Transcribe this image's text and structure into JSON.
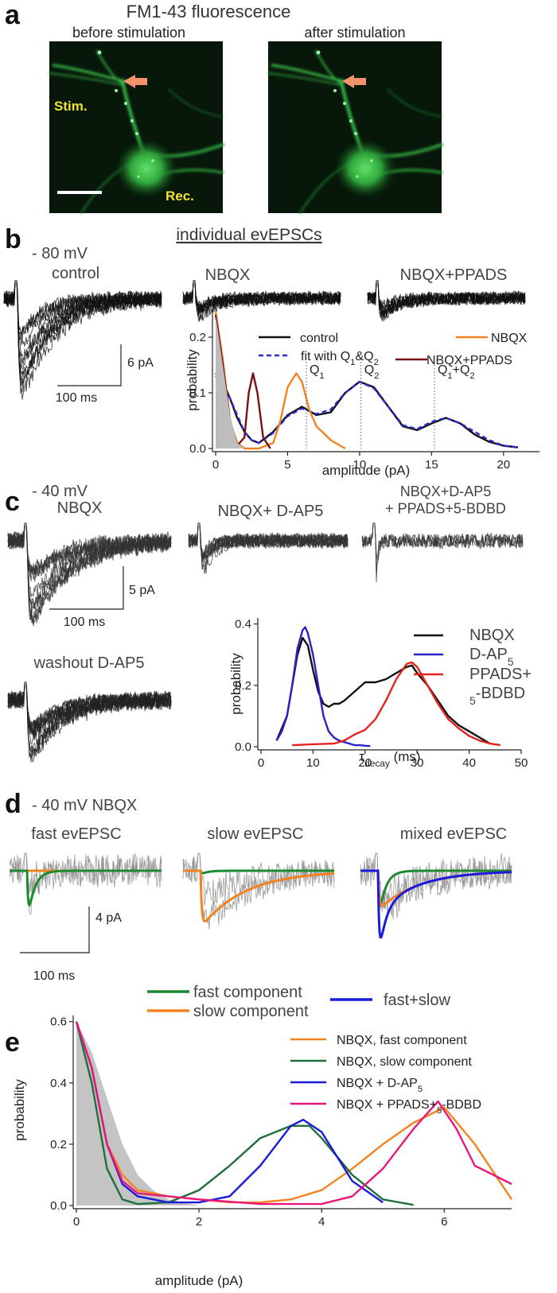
{
  "panel_a": {
    "label": "a",
    "title": "FM1-43  fluorescence",
    "left_caption": "before stimulation",
    "right_caption": "after  stimulation",
    "stim_label": "Stim.",
    "rec_label": "Rec."
  },
  "panel_b": {
    "label": "b",
    "voltage": "- 80 mV",
    "heading": "individual evEPSCs",
    "traces": [
      "control",
      "NBQX",
      "NBQX+PPADS"
    ],
    "scale_y": "6 pA",
    "scale_x": "100 ms"
  },
  "panel_c": {
    "label": "c",
    "voltage": "- 40 mV",
    "traces": [
      "NBQX",
      "NBQX+ D-AP5",
      "NBQX+D-AP5\n+ PPADS+5-BDBD",
      "washout D-AP5"
    ],
    "scale_y": "5 pA",
    "scale_x": "100 ms"
  },
  "panel_d": {
    "label": "d",
    "voltage": "- 40 mV NBQX",
    "traces": [
      "fast evEPSC",
      "slow evEPSC",
      "mixed evEPSC"
    ],
    "scale_y": "4 pA",
    "scale_x": "100 ms",
    "legend": [
      {
        "name": "fast component",
        "color": "#1c8a2e"
      },
      {
        "name": "slow component",
        "color": "#f58220"
      },
      {
        "name": "fast+slow",
        "color": "#1a1adb"
      }
    ]
  },
  "panel_e": {
    "label": "e"
  },
  "chart_data": [
    {
      "type": "line",
      "xlabel": "amplitude (pA)",
      "ylabel": "probability",
      "xlim": [
        0,
        22.5
      ],
      "ylim": [
        0,
        0.25
      ],
      "xticks": [
        0,
        5,
        10,
        15,
        20
      ],
      "yticks": [
        {
          "value": 0,
          "label": "0.0"
        },
        {
          "value": 0.1,
          "label": "0.1"
        },
        {
          "value": 0.2,
          "label": "0.2"
        }
      ],
      "series": [
        {
          "name": "control",
          "color": "#111111",
          "x": [
            0,
            0.5,
            1,
            1.5,
            2,
            2.5,
            3,
            4,
            5,
            6,
            7,
            8,
            9,
            10,
            11,
            12,
            13,
            14,
            15,
            16,
            17,
            18,
            19,
            20,
            21
          ],
          "values": [
            0.135,
            0.12,
            0.09,
            0.055,
            0.03,
            0.015,
            0.01,
            0.03,
            0.06,
            0.075,
            0.06,
            0.065,
            0.1,
            0.12,
            0.11,
            0.075,
            0.04,
            0.033,
            0.045,
            0.055,
            0.045,
            0.025,
            0.012,
            0.005,
            0.002
          ]
        },
        {
          "name": "fit with Q1&Q2",
          "color": "#2a2ad8",
          "dashed": true,
          "x": [
            0,
            0.5,
            1,
            1.5,
            2,
            2.5,
            3,
            4,
            5,
            6,
            7,
            8,
            9,
            10,
            11,
            12,
            13,
            14,
            15,
            16,
            17,
            18,
            19,
            20,
            21
          ],
          "values": [
            0.13,
            0.115,
            0.09,
            0.06,
            0.03,
            0.015,
            0.01,
            0.028,
            0.058,
            0.072,
            0.062,
            0.07,
            0.1,
            0.12,
            0.108,
            0.075,
            0.042,
            0.035,
            0.048,
            0.055,
            0.045,
            0.03,
            0.015,
            0.005,
            0.002
          ]
        },
        {
          "name": "NBQX",
          "color": "#f58220",
          "x": [
            0,
            0.5,
            1,
            1.5,
            2,
            3,
            4,
            4.5,
            5,
            5.6,
            6,
            6.5,
            7,
            8,
            9
          ],
          "values": [
            0.245,
            0.16,
            0.05,
            0.01,
            0,
            0,
            0.01,
            0.05,
            0.11,
            0.135,
            0.12,
            0.07,
            0.04,
            0.015,
            0
          ]
        },
        {
          "name": "NBQX+PPADS",
          "color": "#7a1014",
          "x": [
            0,
            0.5,
            1,
            1.5,
            2,
            2.3,
            2.6,
            2.9,
            3.3,
            3.8
          ],
          "values": [
            0.24,
            0.15,
            0.05,
            0.005,
            0.02,
            0.1,
            0.135,
            0.1,
            0.02,
            0
          ]
        },
        {
          "color": "#bdbdbd",
          "fill": true,
          "x": [
            0,
            0.5,
            1,
            1.5,
            2
          ],
          "values": [
            0.24,
            0.15,
            0.06,
            0.01,
            0
          ]
        }
      ],
      "annotations": [
        {
          "text": "Q1",
          "x": 6.3
        },
        {
          "text": "Q2",
          "x": 10.1
        },
        {
          "text": "Q1+Q2",
          "x": 15.2
        }
      ]
    },
    {
      "type": "line",
      "xlabel": "τdecay (ms)",
      "ylabel": "probability",
      "xlim": [
        0,
        50
      ],
      "ylim": [
        0,
        0.42
      ],
      "xticks": [
        0,
        10,
        20,
        30,
        40,
        50
      ],
      "yticks": [
        {
          "value": 0,
          "label": "0.0"
        },
        {
          "value": 0.2,
          "label": "0.2"
        },
        {
          "value": 0.4,
          "label": "0.4"
        }
      ],
      "series": [
        {
          "name": "NBQX",
          "color": "#111111",
          "x": [
            3,
            5,
            7,
            8,
            9,
            10,
            11,
            12,
            13,
            14,
            15,
            16,
            18,
            20,
            22,
            24,
            26,
            28,
            29,
            30,
            31,
            32,
            34,
            36,
            38,
            40,
            42,
            44
          ],
          "values": [
            0.02,
            0.1,
            0.3,
            0.355,
            0.33,
            0.25,
            0.18,
            0.14,
            0.13,
            0.14,
            0.14,
            0.15,
            0.18,
            0.21,
            0.21,
            0.22,
            0.24,
            0.26,
            0.265,
            0.24,
            0.22,
            0.2,
            0.15,
            0.1,
            0.07,
            0.05,
            0.03,
            0.01
          ]
        },
        {
          "name": "D-AP5",
          "color": "#2a22c8",
          "x": [
            3,
            4,
            5,
            6,
            7,
            8,
            8.5,
            9,
            10,
            11,
            12,
            13,
            14,
            15,
            16,
            17,
            18,
            19,
            20,
            21
          ],
          "values": [
            0.02,
            0.05,
            0.1,
            0.2,
            0.32,
            0.38,
            0.39,
            0.37,
            0.3,
            0.2,
            0.1,
            0.05,
            0.03,
            0.02,
            0.015,
            0.01,
            0.005,
            0.005,
            0.003,
            0.002
          ]
        },
        {
          "name": "PPADS+\n5-BDBD",
          "color": "#e8211f",
          "x": [
            6,
            10,
            14,
            16,
            18,
            20,
            22,
            24,
            26,
            28,
            29,
            30,
            32,
            34,
            36,
            38,
            40,
            42,
            44,
            46
          ],
          "values": [
            0.005,
            0.008,
            0.01,
            0.02,
            0.04,
            0.055,
            0.09,
            0.15,
            0.22,
            0.27,
            0.275,
            0.26,
            0.2,
            0.14,
            0.09,
            0.06,
            0.035,
            0.02,
            0.01,
            0.005
          ]
        }
      ]
    },
    {
      "type": "line",
      "xlabel": "amplitude (pA)",
      "ylabel": "probability",
      "xlim": [
        0,
        7.1
      ],
      "ylim": [
        0,
        0.62
      ],
      "xticks": [
        0,
        2,
        4,
        6
      ],
      "yticks": [
        {
          "value": 0,
          "label": "0.0"
        },
        {
          "value": 0.2,
          "label": "0.2"
        },
        {
          "value": 0.4,
          "label": "0.4"
        },
        {
          "value": 0.6,
          "label": "0.6"
        }
      ],
      "series": [
        {
          "color": "#c4c4c4",
          "fill": true,
          "x": [
            0,
            0.25,
            0.5,
            0.75,
            1,
            1.25,
            1.5,
            2
          ],
          "values": [
            0.6,
            0.5,
            0.35,
            0.2,
            0.1,
            0.05,
            0.02,
            0
          ]
        },
        {
          "name": "NBQX,  fast component",
          "color": "#f58220",
          "x": [
            0,
            0.25,
            0.5,
            0.75,
            1,
            1.5,
            2,
            2.5,
            3,
            3.5,
            4,
            4.5,
            5,
            5.5,
            6,
            6.5,
            7.1
          ],
          "values": [
            0.6,
            0.45,
            0.2,
            0.1,
            0.05,
            0.03,
            0.02,
            0.01,
            0.01,
            0.02,
            0.05,
            0.12,
            0.2,
            0.27,
            0.32,
            0.2,
            0.02
          ]
        },
        {
          "name": "NBQX,  slow component",
          "color": "#1f6e3b",
          "x": [
            0,
            0.25,
            0.5,
            0.75,
            1,
            1.5,
            2,
            2.5,
            3,
            3.5,
            3.8,
            4,
            4.5,
            5,
            5.5
          ],
          "values": [
            0.6,
            0.4,
            0.12,
            0.02,
            0.005,
            0.01,
            0.05,
            0.13,
            0.22,
            0.26,
            0.26,
            0.22,
            0.1,
            0.02,
            0.002
          ]
        },
        {
          "name": "NBQX + D-AP5",
          "color": "#1a1adb",
          "x": [
            0,
            0.25,
            0.5,
            0.75,
            1,
            1.5,
            2,
            2.5,
            3,
            3.5,
            3.7,
            4,
            4.5,
            5
          ],
          "values": [
            0.6,
            0.45,
            0.2,
            0.07,
            0.03,
            0.01,
            0.01,
            0.03,
            0.13,
            0.26,
            0.28,
            0.24,
            0.08,
            0.01
          ]
        },
        {
          "name": "NBQX + PPADS+5-BDBD",
          "color": "#e8177a",
          "x": [
            0,
            0.25,
            0.5,
            0.75,
            1,
            1.5,
            2,
            3,
            4,
            4.5,
            5,
            5.5,
            5.9,
            6.2,
            6.5,
            7.1
          ],
          "values": [
            0.6,
            0.45,
            0.2,
            0.08,
            0.04,
            0.03,
            0.02,
            0.005,
            0.005,
            0.03,
            0.12,
            0.25,
            0.34,
            0.25,
            0.13,
            0.07
          ]
        }
      ]
    }
  ]
}
